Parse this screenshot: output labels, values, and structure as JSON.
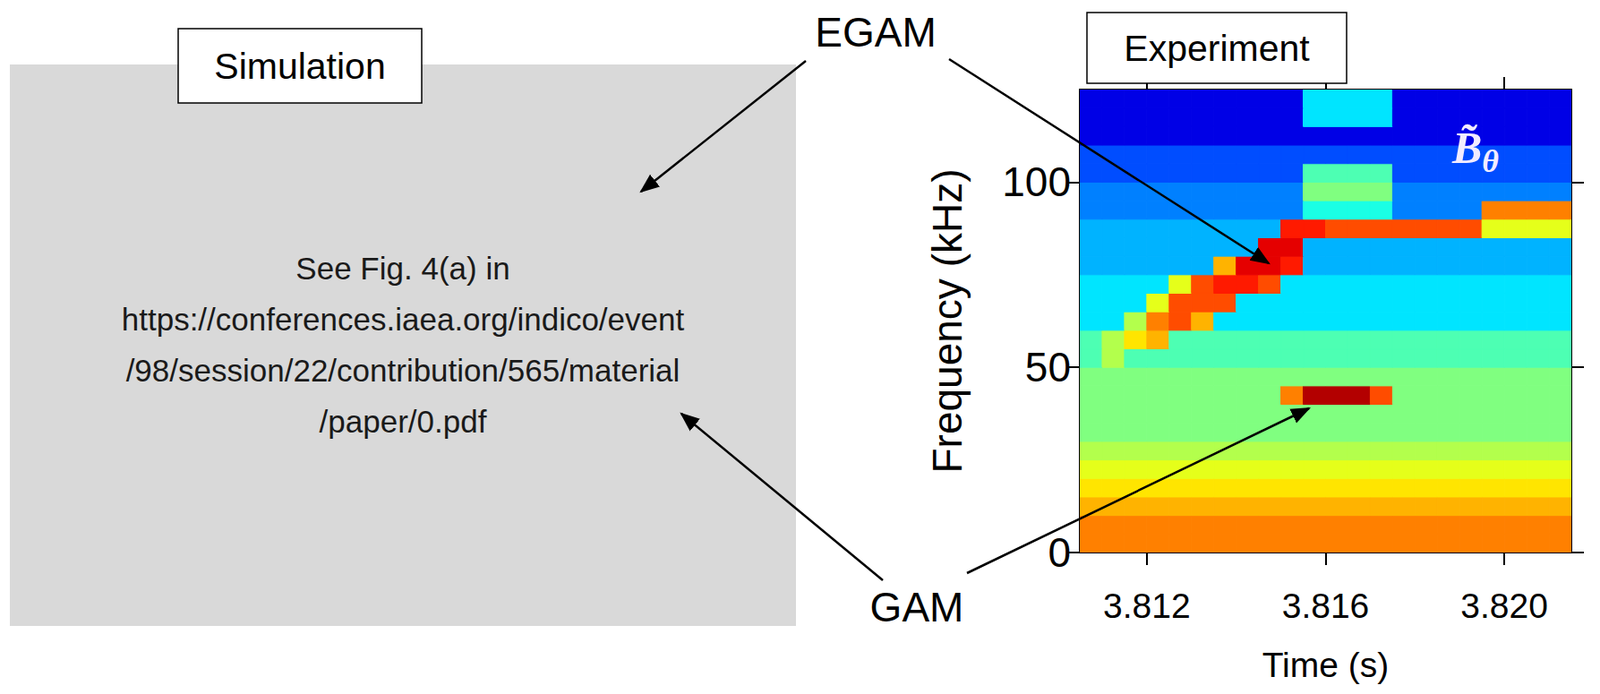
{
  "callouts": [
    "EGAM",
    "GAM"
  ],
  "simulation": {
    "title": "Simulation",
    "text": "See Fig. 4(a) in https://conferences.iaea.org/indico/event/98/session/22/contribution/565/material/paper/0.pdf"
  },
  "chart_data": {
    "type": "heatmap",
    "title": "Experiment",
    "x_label": "Time (s)",
    "y_label": "Frequency (kHz)",
    "annotations": [
      {
        "text": "B̃",
        "subscript": "θ"
      }
    ],
    "grid": false,
    "xlim": [
      3.8105,
      3.8215
    ],
    "xticks": [
      3.812,
      3.816,
      {
        "value": 3.82,
        "label": "3.820"
      }
    ],
    "ylim": [
      0,
      125
    ],
    "yticks": [
      0,
      50,
      100
    ],
    "zlim": [
      0,
      10
    ],
    "t_edges": [
      3.8105,
      3.811,
      3.8115,
      3.812,
      3.8125,
      3.813,
      3.8135,
      3.814,
      3.8145,
      3.815,
      3.8155,
      3.816,
      3.8165,
      3.817,
      3.8175,
      3.818,
      3.8185,
      3.819,
      3.8195,
      3.82,
      3.8205,
      3.821,
      3.8215
    ],
    "f_edges": [
      0,
      5,
      10,
      15,
      20,
      25,
      30,
      35,
      40,
      45,
      50,
      55,
      60,
      65,
      70,
      75,
      80,
      85,
      90,
      95,
      100,
      105,
      110,
      115,
      120,
      125
    ],
    "z": [
      [
        7.5,
        7.5,
        7.5,
        7.5,
        7.5,
        7.5,
        7.5,
        7.5,
        7.5,
        7.5,
        7.5,
        7.5,
        7.5,
        7.5,
        7.5,
        7.5,
        7.5,
        7.5,
        7.5,
        7.5,
        7.5,
        7.5
      ],
      [
        7.5,
        7.5,
        7.5,
        7.5,
        7.5,
        7.5,
        7.5,
        7.5,
        7.5,
        7.5,
        7.5,
        7.5,
        7.5,
        7.5,
        7.5,
        7.5,
        7.5,
        7.5,
        7.5,
        7.5,
        7.5,
        7.5
      ],
      [
        7,
        7,
        7,
        7,
        7,
        7,
        7,
        7,
        7,
        7,
        7,
        7,
        7,
        7,
        7,
        7,
        7,
        7,
        7,
        7,
        7,
        7
      ],
      [
        6.5,
        6.5,
        6.5,
        6.5,
        6.5,
        6.5,
        6.5,
        6.5,
        6.5,
        6.5,
        6.5,
        6.5,
        6.5,
        6.5,
        6.5,
        6.5,
        6.5,
        6.5,
        6.5,
        6.5,
        6.5,
        6.5
      ],
      [
        6,
        6,
        6,
        6,
        6,
        6,
        6,
        6,
        6,
        6,
        6,
        6,
        6,
        6,
        6,
        6,
        6,
        6,
        6,
        6,
        6,
        6
      ],
      [
        5.5,
        5.5,
        5.5,
        5.5,
        5.5,
        5.5,
        5.5,
        5.5,
        5.5,
        5.5,
        5.5,
        5.5,
        5.5,
        5.5,
        5.5,
        5.5,
        5.5,
        5.5,
        5.5,
        5.5,
        5.5,
        5.5
      ],
      [
        5,
        5,
        5,
        5,
        5,
        5,
        5,
        5,
        5,
        5,
        5,
        5,
        5,
        5,
        5,
        5,
        5,
        5,
        5,
        5,
        5,
        5
      ],
      [
        5,
        5,
        5,
        5,
        5,
        5,
        5,
        5,
        5,
        5,
        5,
        5,
        5,
        5,
        5,
        5,
        5,
        5,
        5,
        5,
        5,
        5
      ],
      [
        5,
        5,
        5,
        5,
        5,
        5,
        5,
        5,
        5,
        7.5,
        9.5,
        9.5,
        9.5,
        8,
        5,
        5,
        5,
        5,
        5,
        5,
        5,
        5
      ],
      [
        5,
        5,
        5,
        5,
        5,
        5,
        5,
        5,
        5,
        5,
        5,
        5,
        5,
        5,
        5,
        5,
        5,
        5,
        5,
        5,
        5,
        5
      ],
      [
        4.5,
        5.5,
        4.5,
        4.5,
        4.5,
        4.5,
        4.5,
        4.5,
        4.5,
        4.5,
        4.5,
        4.5,
        4.5,
        4.5,
        4.5,
        4.5,
        4.5,
        4.5,
        4.5,
        4.5,
        4.5,
        4.5
      ],
      [
        4.5,
        5.5,
        6.5,
        7,
        4.5,
        4.5,
        4.5,
        4.5,
        4.5,
        4.5,
        4.5,
        4.5,
        4.5,
        4.5,
        4.5,
        4.5,
        4.5,
        4.5,
        4.5,
        4.5,
        4.5,
        4.5
      ],
      [
        3.5,
        3.5,
        5.5,
        7.5,
        8,
        7,
        3.5,
        3.5,
        3.5,
        3.5,
        3.5,
        3.5,
        3.5,
        3.5,
        3.5,
        3.5,
        3.5,
        3.5,
        3.5,
        3.5,
        3.5,
        3.5
      ],
      [
        3.5,
        3.5,
        3.5,
        6,
        8,
        8,
        8,
        3.5,
        3.5,
        3.5,
        3.5,
        3.5,
        3.5,
        3.5,
        3.5,
        3.5,
        3.5,
        3.5,
        3.5,
        3.5,
        3.5,
        3.5
      ],
      [
        3.5,
        3.5,
        3.5,
        3.5,
        6,
        8,
        8.5,
        8.5,
        8,
        3.5,
        3.5,
        3.5,
        3.5,
        3.5,
        3.5,
        3.5,
        3.5,
        3.5,
        3.5,
        3.5,
        3.5,
        3.5
      ],
      [
        3,
        3,
        3,
        3,
        3,
        3,
        7,
        9,
        9,
        8.5,
        3,
        3,
        3,
        3,
        3,
        3,
        3,
        3,
        3,
        3,
        3,
        3
      ],
      [
        3,
        3,
        3,
        3,
        3,
        3,
        3,
        3,
        9,
        9,
        3,
        3,
        3,
        3,
        3,
        3,
        3,
        3,
        3,
        3,
        3,
        3
      ],
      [
        3,
        3,
        3,
        3,
        3,
        3,
        3,
        3,
        3,
        8.5,
        8.5,
        8,
        8,
        8,
        8,
        8,
        8,
        8,
        6,
        6,
        6,
        6
      ],
      [
        2.5,
        2.5,
        2.5,
        2.5,
        2.5,
        2.5,
        2.5,
        2.5,
        2.5,
        2.5,
        4,
        4,
        4,
        4,
        2.5,
        2.5,
        2.5,
        2.5,
        7.5,
        7.5,
        7.5,
        7.5
      ],
      [
        2.5,
        2.5,
        2.5,
        2.5,
        2.5,
        2.5,
        2.5,
        2.5,
        2.5,
        2.5,
        5,
        5,
        5,
        5,
        2.5,
        2.5,
        2.5,
        2.5,
        2.5,
        2.5,
        2.5,
        2.5
      ],
      [
        2,
        2,
        2,
        2,
        2,
        2,
        2,
        2,
        2,
        2,
        4.5,
        4.5,
        4.5,
        4.5,
        2,
        2,
        2,
        2,
        2,
        2,
        2,
        2
      ],
      [
        2,
        2,
        2,
        2,
        2,
        2,
        2,
        2,
        2,
        2,
        2,
        2,
        2,
        2,
        2,
        2,
        2,
        2,
        2,
        2,
        2,
        2
      ],
      [
        1,
        1,
        1,
        1,
        1,
        1,
        1,
        1,
        1,
        1,
        1,
        1,
        1,
        1,
        1,
        1,
        1,
        1,
        1,
        1,
        1,
        1
      ],
      [
        1,
        1,
        1,
        1,
        1,
        1,
        1,
        1,
        1,
        1,
        3.5,
        3.5,
        3.5,
        3.5,
        1,
        1,
        1,
        1,
        1,
        1,
        1,
        1
      ],
      [
        1,
        1,
        1,
        1,
        1,
        1,
        1,
        1,
        1,
        1,
        3.5,
        3.5,
        3.5,
        3.5,
        1,
        1,
        1,
        1,
        1,
        1,
        1,
        1
      ]
    ]
  }
}
